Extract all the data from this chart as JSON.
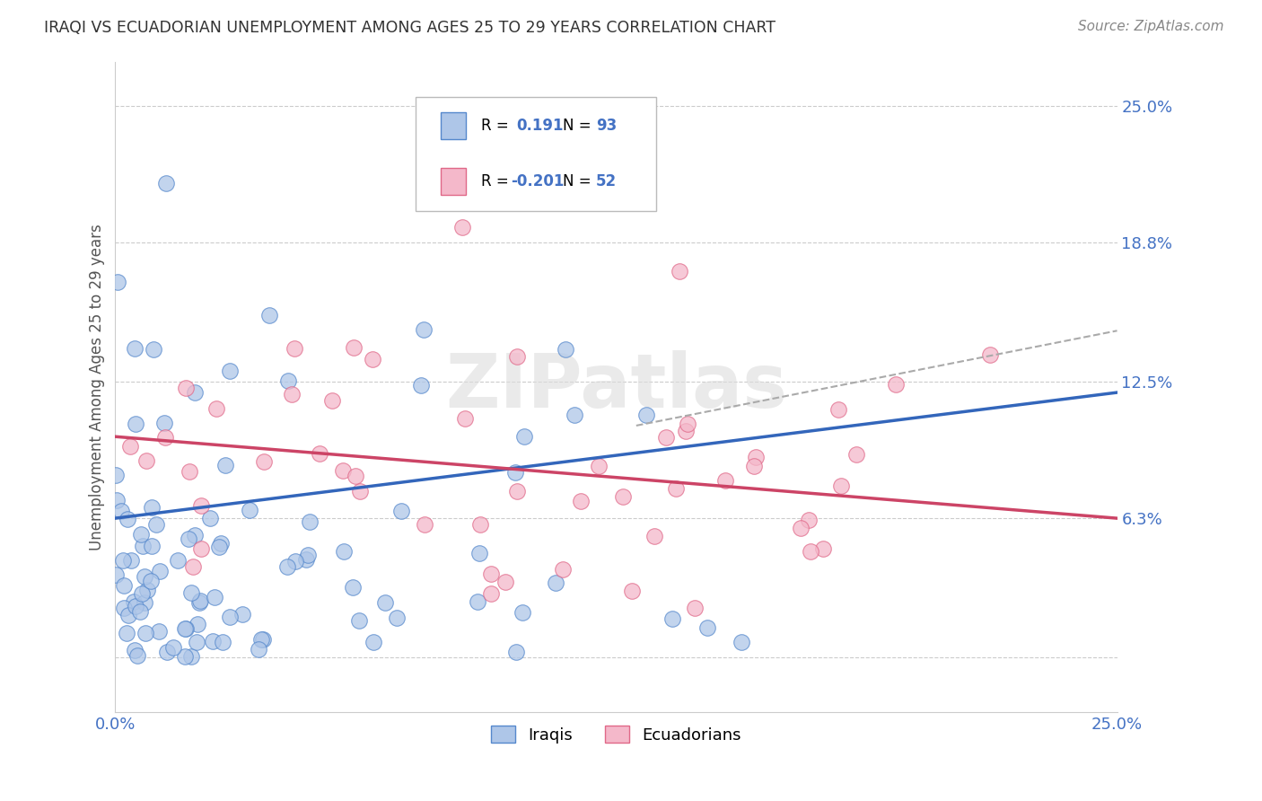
{
  "title": "IRAQI VS ECUADORIAN UNEMPLOYMENT AMONG AGES 25 TO 29 YEARS CORRELATION CHART",
  "source": "Source: ZipAtlas.com",
  "ylabel": "Unemployment Among Ages 25 to 29 years",
  "xlim": [
    0.0,
    0.25
  ],
  "ylim": [
    -0.025,
    0.27
  ],
  "ytick_labels": [
    "6.3%",
    "12.5%",
    "18.8%",
    "25.0%"
  ],
  "ytick_positions": [
    0.063,
    0.125,
    0.188,
    0.25
  ],
  "iraqi_R": 0.191,
  "iraqi_N": 93,
  "ecuadorian_R": -0.201,
  "ecuadorian_N": 52,
  "iraqi_fill_color": "#aec6e8",
  "ecuadorian_fill_color": "#f4b8ca",
  "iraqi_edge_color": "#5588cc",
  "ecuadorian_edge_color": "#e06888",
  "iraqi_line_color": "#3366bb",
  "ecuadorian_line_color": "#cc4466",
  "dashed_line_color": "#aaaaaa",
  "background_color": "#ffffff",
  "grid_color": "#cccccc",
  "title_color": "#333333",
  "axis_label_color": "#555555",
  "tick_label_color": "#4472c4",
  "legend_r_color": "#000000",
  "legend_n_color": "#4472c4"
}
